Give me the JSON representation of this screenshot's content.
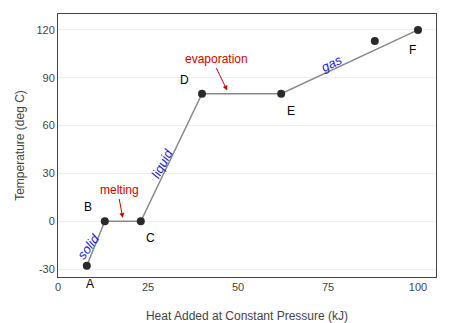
{
  "chart_data": {
    "type": "line",
    "xlabel": "Heat Added at Constant Pressure (kJ)",
    "ylabel": "Temperature (deg C)",
    "series": [
      {
        "type": "line",
        "color": "#888888",
        "x": [
          8,
          13,
          23,
          40,
          62,
          100
        ],
        "values": [
          -28,
          0,
          0,
          80,
          80,
          120
        ]
      },
      {
        "type": "scatter",
        "color": "#2a2a2a",
        "x": [
          88
        ],
        "values": [
          113
        ]
      },
      {
        "type": "scatter",
        "color": "#2a2a2a",
        "x": [
          8,
          13,
          23,
          40,
          62,
          100
        ],
        "values": [
          -28,
          0,
          0,
          80,
          80,
          120
        ]
      }
    ],
    "phase_labels": [
      {
        "text": "solid",
        "x": 8.5,
        "y": -16,
        "color": "#2222cc"
      },
      {
        "text": "liquid",
        "x": 29,
        "y": 36,
        "color": "#2222cc"
      },
      {
        "text": "gas",
        "x": 76,
        "y": 99,
        "color": "#2222cc"
      }
    ],
    "transition_labels": [
      {
        "text": "melting",
        "x": 17,
        "y": 14,
        "arrow_x": 18,
        "arrow_y": 2,
        "color": "#cc0000"
      },
      {
        "text": "evaporation",
        "x": 44,
        "y": 96,
        "arrow_x": 47,
        "arrow_y": 82,
        "color": "#cc0000"
      }
    ],
    "point_labels": [
      {
        "text": "A",
        "x": 9,
        "y": -34,
        "color": "#000000"
      },
      {
        "text": "B",
        "x": 10,
        "y": 3,
        "color": "#000000"
      },
      {
        "text": "C",
        "x": 24,
        "y": -5,
        "color": "#000000"
      },
      {
        "text": "D",
        "x": 37,
        "y": 83,
        "color": "#000000"
      },
      {
        "text": "E",
        "x": 63,
        "y": 75,
        "color": "#000000"
      },
      {
        "text": "F",
        "x": 97,
        "y": 113,
        "color": "#000000"
      }
    ],
    "xlim": [
      0,
      105
    ],
    "ylim": [
      -35,
      130
    ],
    "xticks": [
      0,
      25,
      50,
      75,
      100
    ],
    "yticks": [
      -30,
      0,
      30,
      60,
      90,
      120
    ],
    "grid": "y"
  }
}
